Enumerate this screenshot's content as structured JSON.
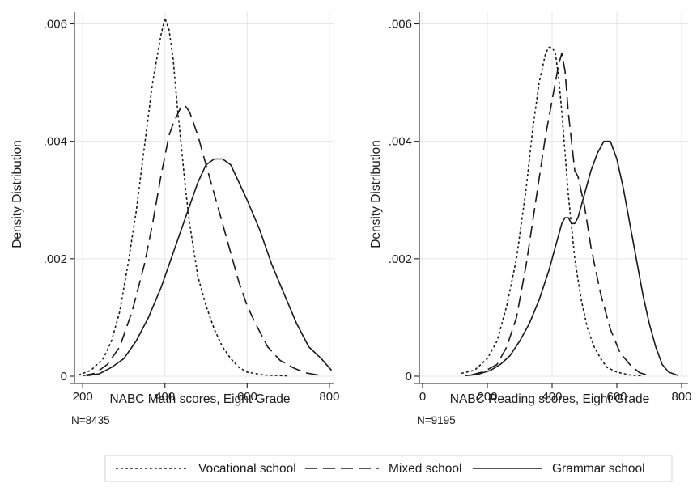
{
  "chart_data": [
    {
      "type": "line",
      "xlabel": "NABC Math scores, Eight Grade",
      "ylabel": "Density Distribution",
      "note": "N=8435",
      "xlim": [
        180,
        810
      ],
      "ylim": [
        0,
        0.0062
      ],
      "xticks": [
        200,
        400,
        600,
        800
      ],
      "xtick_labels": [
        "200",
        "400",
        "600",
        "800"
      ],
      "yticks": [
        0,
        0.002,
        0.004,
        0.006
      ],
      "ytick_labels": [
        "0",
        ".002",
        ".004",
        ".006"
      ],
      "grid": true,
      "series": [
        {
          "name": "Vocational school",
          "style": "dotted",
          "x": [
            190,
            220,
            250,
            270,
            290,
            310,
            330,
            350,
            370,
            380,
            390,
            400,
            410,
            420,
            430,
            440,
            450,
            460,
            480,
            500,
            520,
            540,
            560,
            580,
            600,
            640,
            700
          ],
          "y": [
            2e-05,
            0.0001,
            0.0003,
            0.0006,
            0.0011,
            0.0019,
            0.0028,
            0.0039,
            0.005,
            0.0054,
            0.0058,
            0.0061,
            0.0059,
            0.0054,
            0.0046,
            0.0039,
            0.0032,
            0.0026,
            0.0017,
            0.0012,
            0.0008,
            0.0005,
            0.0003,
            0.00015,
            7e-05,
            2e-05,
            5e-06
          ]
        },
        {
          "name": "Mixed school",
          "style": "dashed",
          "x": [
            200,
            230,
            260,
            290,
            320,
            350,
            370,
            390,
            410,
            420,
            440,
            450,
            460,
            480,
            500,
            520,
            540,
            560,
            580,
            600,
            620,
            650,
            680,
            710,
            740,
            780
          ],
          "y": [
            1e-05,
            5e-05,
            0.0002,
            0.0005,
            0.0011,
            0.0019,
            0.0026,
            0.0034,
            0.0041,
            0.0043,
            0.0046,
            0.0046,
            0.0045,
            0.0041,
            0.0036,
            0.0031,
            0.0026,
            0.0021,
            0.0016,
            0.0012,
            0.0009,
            0.0005,
            0.00027,
            0.00015,
            6e-05,
            1e-05
          ]
        },
        {
          "name": "Grammar school",
          "style": "solid",
          "x": [
            210,
            240,
            270,
            300,
            330,
            360,
            390,
            420,
            450,
            480,
            500,
            520,
            540,
            560,
            580,
            600,
            630,
            660,
            690,
            720,
            750,
            780,
            805
          ],
          "y": [
            1e-05,
            4e-05,
            0.00015,
            0.0003,
            0.0006,
            0.001,
            0.0015,
            0.0021,
            0.0027,
            0.0033,
            0.0036,
            0.0037,
            0.0037,
            0.0036,
            0.0033,
            0.003,
            0.0025,
            0.0019,
            0.0014,
            0.0009,
            0.0005,
            0.0003,
            0.0001
          ]
        }
      ]
    },
    {
      "type": "line",
      "xlabel": "NABC Reading scores, Eight Grade",
      "ylabel": "Density Distribution",
      "note": "N=9195",
      "xlim": [
        -10,
        820
      ],
      "ylim": [
        0,
        0.0062
      ],
      "xticks": [
        0,
        200,
        400,
        600,
        800
      ],
      "xtick_labels": [
        "0",
        "200",
        "400",
        "600",
        "800"
      ],
      "yticks": [
        0,
        0.002,
        0.004,
        0.006
      ],
      "ytick_labels": [
        "0",
        ".002",
        ".004",
        ".006"
      ],
      "grid": true,
      "series": [
        {
          "name": "Vocational school",
          "style": "dotted",
          "x": [
            120,
            160,
            200,
            230,
            260,
            290,
            320,
            340,
            360,
            380,
            390,
            400,
            410,
            420,
            430,
            440,
            450,
            470,
            490,
            510,
            530,
            550,
            570,
            600,
            640,
            680
          ],
          "y": [
            5e-05,
            0.0001,
            0.0003,
            0.0006,
            0.0012,
            0.002,
            0.0032,
            0.0042,
            0.005,
            0.0055,
            0.0056,
            0.0056,
            0.0055,
            0.0051,
            0.0045,
            0.0038,
            0.0031,
            0.002,
            0.0013,
            0.0008,
            0.0005,
            0.0003,
            0.00015,
            7e-05,
            2e-05,
            5e-06
          ]
        },
        {
          "name": "Mixed school",
          "style": "dashed",
          "x": [
            150,
            190,
            230,
            260,
            290,
            320,
            350,
            380,
            400,
            410,
            420,
            430,
            440,
            450,
            460,
            470,
            480,
            500,
            520,
            550,
            580,
            610,
            640,
            670,
            700
          ],
          "y": [
            2e-05,
            8e-05,
            0.0002,
            0.0005,
            0.001,
            0.0019,
            0.003,
            0.0041,
            0.0047,
            0.005,
            0.0053,
            0.0055,
            0.0052,
            0.0045,
            0.004,
            0.0035,
            0.0034,
            0.0029,
            0.0022,
            0.0014,
            0.0008,
            0.0004,
            0.0002,
            6e-05,
            1e-05
          ]
        },
        {
          "name": "Grammar school",
          "style": "solid",
          "x": [
            130,
            170,
            210,
            240,
            270,
            300,
            330,
            360,
            390,
            410,
            430,
            440,
            450,
            460,
            470,
            480,
            500,
            520,
            540,
            560,
            570,
            580,
            600,
            620,
            640,
            660,
            680,
            700,
            720,
            740,
            760,
            790
          ],
          "y": [
            1e-05,
            3e-05,
            0.0001,
            0.0002,
            0.00035,
            0.0006,
            0.0009,
            0.0013,
            0.0018,
            0.0022,
            0.0026,
            0.0027,
            0.0027,
            0.0026,
            0.0026,
            0.0027,
            0.0031,
            0.0035,
            0.0038,
            0.004,
            0.004,
            0.004,
            0.0037,
            0.0032,
            0.0026,
            0.002,
            0.0014,
            0.0009,
            0.0005,
            0.0002,
            7e-05,
            1e-05
          ]
        }
      ]
    }
  ]
}
